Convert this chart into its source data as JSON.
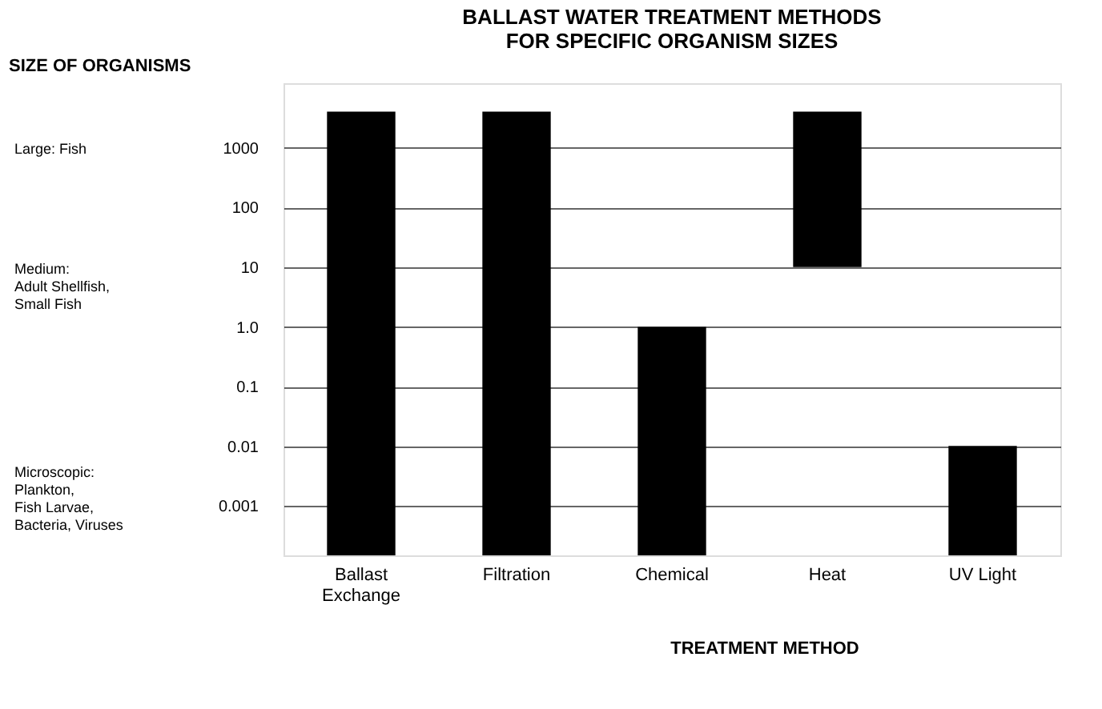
{
  "chart_data": {
    "type": "bar",
    "title": [
      "BALLAST WATER TREATMENT METHODS",
      "FOR SPECIFIC ORGANISM SIZES"
    ],
    "xlabel": "TREATMENT METHOD",
    "ylabel": "SIZE OF ORGANISMS",
    "categories": [
      "Ballast\nExchange",
      "Filtration",
      "Chemical",
      "Heat",
      "UV Light"
    ],
    "base": [
      0.00015,
      0.00015,
      0.00015,
      10,
      0.00015
    ],
    "values": [
      4000,
      4000,
      1,
      3990,
      0.01
    ],
    "color": "#000000",
    "log": true,
    "ylim": [
      0.00015,
      12000
    ],
    "yticks": [
      {
        "value": 0.001,
        "label": "0.001"
      },
      {
        "value": 0.01,
        "label": "0.01"
      },
      {
        "value": 0.1,
        "label": "0.1"
      },
      {
        "value": 1,
        "label": "1.0"
      },
      {
        "value": 10,
        "label": "10"
      },
      {
        "value": 100,
        "label": "100"
      },
      {
        "value": 1000,
        "label": "1000"
      }
    ],
    "grid": "y",
    "annotations": [
      "Large: Fish",
      "Medium:\nAdult Shellfish,\nSmall Fish",
      "Microscopic:\nPlankton,\nFish Larvae,\nBacteria, Viruses"
    ]
  }
}
